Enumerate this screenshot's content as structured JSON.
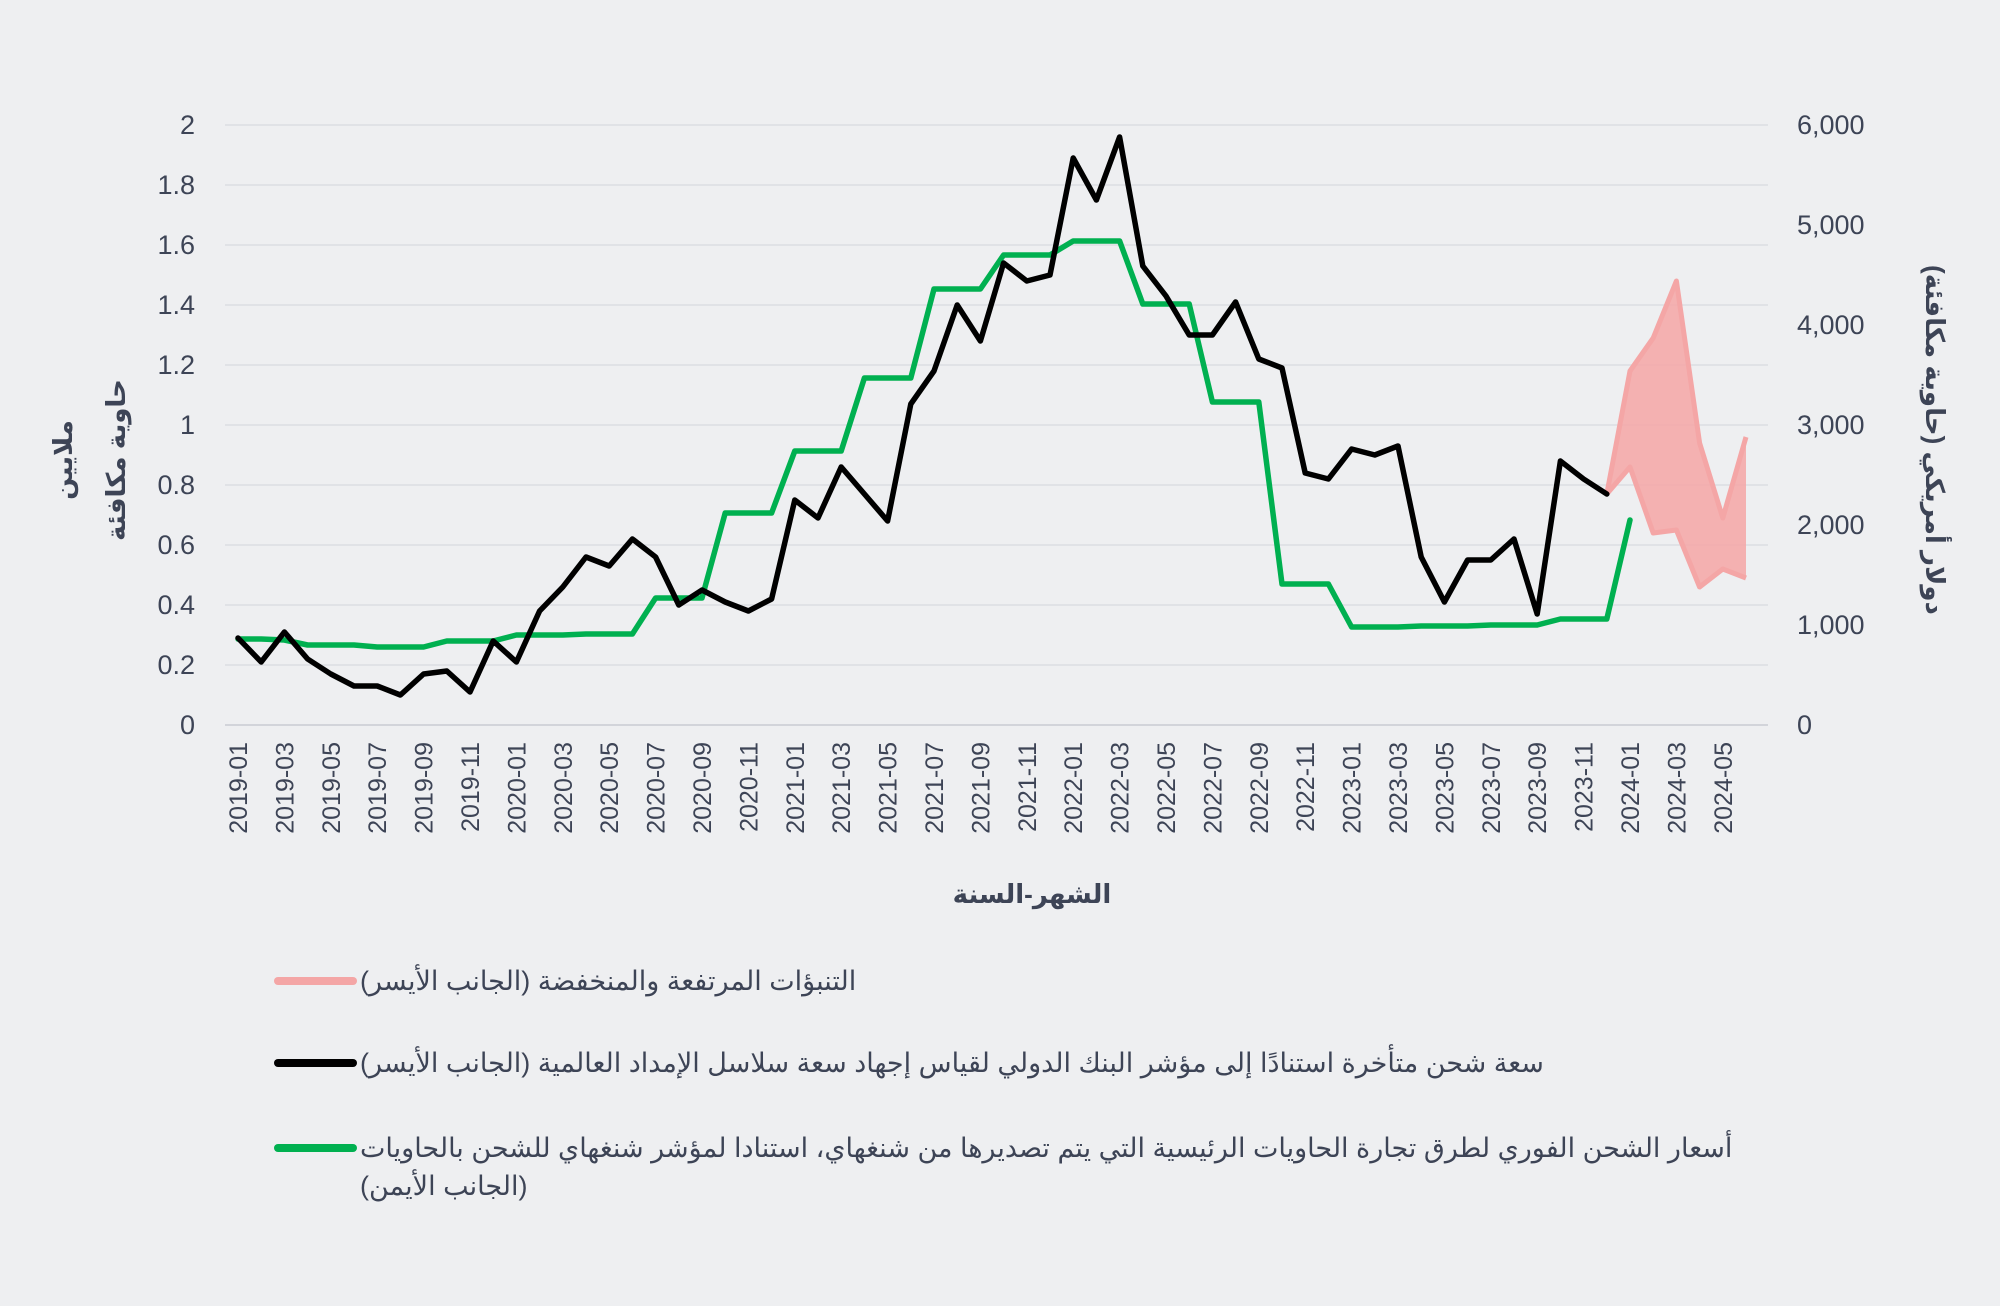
{
  "chart_data": {
    "type": "line",
    "xlabel": "الشهر-السنة",
    "ylabel_left_line1": "ملايين",
    "ylabel_left_line2": "حاوية مكافئة",
    "ylabel_right": "دولار أمريكي (حاوية مكافئة)",
    "ylim_left": [
      0,
      2
    ],
    "ylim_right": [
      0,
      6000
    ],
    "yticks_left": [
      "0",
      "0.2",
      "0.4",
      "0.6",
      "0.8",
      "1",
      "1.2",
      "1.4",
      "1.6",
      "1.8",
      "2"
    ],
    "yticks_right": [
      "0",
      "1,000",
      "2,000",
      "3,000",
      "4,000",
      "5,000",
      "6,000"
    ],
    "grid": true,
    "legend_placement": "bottom",
    "x": [
      "2019-01",
      "2019-02",
      "2019-03",
      "2019-04",
      "2019-05",
      "2019-06",
      "2019-07",
      "2019-08",
      "2019-09",
      "2019-10",
      "2019-11",
      "2019-12",
      "2020-01",
      "2020-02",
      "2020-03",
      "2020-04",
      "2020-05",
      "2020-06",
      "2020-07",
      "2020-08",
      "2020-09",
      "2020-10",
      "2020-11",
      "2020-12",
      "2021-01",
      "2021-02",
      "2021-03",
      "2021-04",
      "2021-05",
      "2021-06",
      "2021-07",
      "2021-08",
      "2021-09",
      "2021-10",
      "2021-11",
      "2021-12",
      "2022-01",
      "2022-02",
      "2022-03",
      "2022-04",
      "2022-05",
      "2022-06",
      "2022-07",
      "2022-08",
      "2022-09",
      "2022-10",
      "2022-11",
      "2022-12",
      "2023-01",
      "2023-02",
      "2023-03",
      "2023-04",
      "2023-05",
      "2023-06",
      "2023-07",
      "2023-08",
      "2023-09",
      "2023-10",
      "2023-11",
      "2023-12",
      "2024-01",
      "2024-02",
      "2024-03",
      "2024-04",
      "2024-05",
      "2024-06"
    ],
    "xtick_labels": [
      "2019-01",
      "2019-03",
      "2019-05",
      "2019-07",
      "2019-09",
      "2019-11",
      "2020-01",
      "2020-03",
      "2020-05",
      "2020-07",
      "2020-09",
      "2020-11",
      "2021-01",
      "2021-03",
      "2021-05",
      "2021-07",
      "2021-09",
      "2021-11",
      "2022-01",
      "2022-03",
      "2022-05",
      "2022-07",
      "2022-09",
      "2022-11",
      "2023-01",
      "2023-03",
      "2023-05",
      "2023-07",
      "2023-09",
      "2023-11",
      "2024-01",
      "2024-03",
      "2024-05"
    ],
    "series": [
      {
        "name": "سعة شحن متأخرة استنادًا إلى مؤشر البنك الدولي لقياس إجهاد سعة سلاسل الإمداد العالمية (الجانب الأيسر)",
        "axis": "left",
        "color": "#000000",
        "values": [
          0.29,
          0.21,
          0.31,
          0.22,
          0.17,
          0.13,
          0.13,
          0.1,
          0.17,
          0.18,
          0.11,
          0.28,
          0.21,
          0.38,
          0.46,
          0.56,
          0.53,
          0.62,
          0.56,
          0.4,
          0.45,
          0.41,
          0.38,
          0.42,
          0.75,
          0.69,
          0.86,
          0.77,
          0.68,
          1.07,
          1.18,
          1.4,
          1.28,
          1.54,
          1.48,
          1.5,
          1.89,
          1.75,
          1.96,
          1.53,
          1.43,
          1.3,
          1.3,
          1.41,
          1.22,
          1.19,
          0.84,
          0.82,
          0.92,
          0.9,
          0.93,
          0.56,
          0.41,
          0.55,
          0.55,
          0.62,
          0.37,
          0.88,
          0.82,
          0.77,
          null,
          null,
          null,
          null,
          null,
          null
        ]
      },
      {
        "name": "أسعار الشحن الفوري لطرق تجارة الحاويات الرئيسية التي يتم تصديرها من شنغهاي، استنادا لمؤشر شنغهاي للشحن بالحاويات (الجانب الأيمن)",
        "name_line1": "أسعار الشحن الفوري لطرق تجارة الحاويات الرئيسية التي يتم تصديرها من شنغهاي، استنادا لمؤشر شنغهاي للشحن بالحاويات",
        "name_line2": "(الجانب الأيمن)",
        "axis": "right",
        "color": "#00b050",
        "values": [
          860,
          860,
          850,
          800,
          800,
          800,
          780,
          780,
          780,
          840,
          840,
          840,
          900,
          900,
          900,
          910,
          910,
          910,
          1270,
          1270,
          1270,
          2120,
          2120,
          2120,
          2740,
          2740,
          2740,
          3470,
          3470,
          3470,
          4360,
          4360,
          4360,
          4700,
          4700,
          4700,
          4840,
          4840,
          4840,
          4210,
          4210,
          4210,
          3230,
          3230,
          3230,
          1410,
          1410,
          1410,
          980,
          980,
          980,
          990,
          990,
          990,
          1000,
          1000,
          1000,
          1060,
          1060,
          1060,
          2050,
          null,
          null,
          null,
          null,
          null
        ]
      },
      {
        "name": "التنبؤات المرتفعة والمنخفضة (الجانب الأيسر)",
        "axis": "left",
        "color": "#f4a6a6",
        "type": "area",
        "x": [
          "2023-12",
          "2024-01",
          "2024-02",
          "2024-03",
          "2024-04",
          "2024-05",
          "2024-06"
        ],
        "high": [
          0.77,
          1.18,
          1.29,
          1.48,
          0.94,
          0.69,
          0.96
        ],
        "low": [
          0.77,
          0.86,
          0.64,
          0.65,
          0.46,
          0.52,
          0.49
        ]
      }
    ]
  },
  "legend": {
    "forecast": "التنبؤات المرتفعة والمنخفضة (الجانب الأيسر)",
    "backlog": "سعة شحن متأخرة استنادًا إلى مؤشر البنك الدولي لقياس إجهاد سعة سلاسل الإمداد العالمية (الجانب الأيسر)",
    "spot_line1": "أسعار الشحن الفوري لطرق تجارة الحاويات الرئيسية التي يتم تصديرها من شنغهاي، استنادا لمؤشر شنغهاي للشحن بالحاويات",
    "spot_line2": "(الجانب الأيمن)"
  }
}
